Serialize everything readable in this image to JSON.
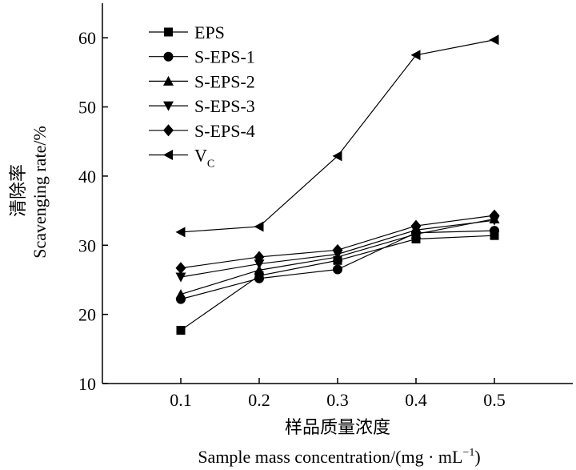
{
  "chart_data": {
    "type": "line",
    "x": [
      0.1,
      0.2,
      0.3,
      0.4,
      0.5
    ],
    "xlim": [
      0.0,
      0.6
    ],
    "ylim": [
      10,
      65
    ],
    "xticks": [
      "0.1",
      "0.2",
      "0.3",
      "0.4",
      "0.5"
    ],
    "yticks": [
      "10",
      "20",
      "30",
      "40",
      "50",
      "60"
    ],
    "xlabel_cn": "样品质量浓度",
    "xlabel_en": "Sample mass concentration/(mg · mL",
    "xlabel_en_sup": "−1",
    "xlabel_en_tail": ")",
    "ylabel_cn": "清除率",
    "ylabel_en": "Scavenging rate/%",
    "grid": false,
    "legend_position": "top-left",
    "series": [
      {
        "name": "EPS",
        "marker": "square",
        "values": [
          17.7,
          25.6,
          27.8,
          30.9,
          31.4
        ]
      },
      {
        "name": "S-EPS-1",
        "marker": "circle",
        "values": [
          22.2,
          25.2,
          26.5,
          31.8,
          32.1
        ]
      },
      {
        "name": "S-EPS-2",
        "marker": "triangle-up",
        "values": [
          22.9,
          26.4,
          28.3,
          31.6,
          33.8
        ]
      },
      {
        "name": "S-EPS-3",
        "marker": "triangle-down",
        "values": [
          25.4,
          27.3,
          28.7,
          32.2,
          33.6
        ]
      },
      {
        "name": "S-EPS-4",
        "marker": "diamond",
        "values": [
          26.7,
          28.3,
          29.3,
          32.8,
          34.3
        ]
      },
      {
        "name": "V",
        "name_sub": "C",
        "marker": "triangle-left",
        "values": [
          31.9,
          32.7,
          42.9,
          57.5,
          59.7
        ]
      }
    ]
  }
}
